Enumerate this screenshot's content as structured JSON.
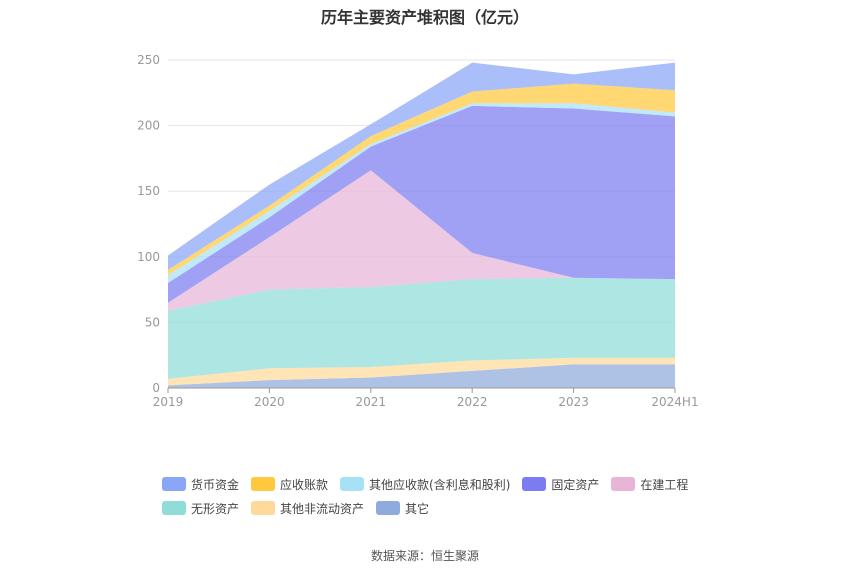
{
  "title": "历年主要资产堆积图（亿元）",
  "source": "数据来源：恒生聚源",
  "chart_data": {
    "type": "area",
    "stacked": true,
    "categories": [
      "2019",
      "2020",
      "2021",
      "2022",
      "2023",
      "2024H1"
    ],
    "ylim": [
      0,
      250
    ],
    "yticks": [
      0,
      50,
      100,
      150,
      200,
      250
    ],
    "grid": true,
    "legend_position": "bottom",
    "series": [
      {
        "name": "其它",
        "color": "#8faadc",
        "values": [
          2,
          6,
          8,
          13,
          18,
          18
        ]
      },
      {
        "name": "其他非流动资产",
        "color": "#ffd99a",
        "values": [
          5,
          9,
          8,
          8,
          5,
          5
        ]
      },
      {
        "name": "无形资产",
        "color": "#8fdcd8",
        "values": [
          52,
          60,
          61,
          62,
          61,
          60
        ]
      },
      {
        "name": "在建工程",
        "color": "#e8b4d8",
        "values": [
          6,
          40,
          89,
          20,
          0,
          0
        ]
      },
      {
        "name": "固定资产",
        "color": "#7b7cf0",
        "values": [
          15,
          15,
          18,
          112,
          129,
          124
        ]
      },
      {
        "name": "其他应收款(含利息和股利)",
        "color": "#a8e0f7",
        "values": [
          6,
          5,
          2,
          2,
          4,
          3
        ]
      },
      {
        "name": "应收账款",
        "color": "#ffc83d",
        "values": [
          4,
          4,
          6,
          9,
          15,
          17
        ]
      },
      {
        "name": "货币资金",
        "color": "#89a6f7",
        "values": [
          11,
          16,
          9,
          22,
          7,
          21
        ]
      }
    ]
  },
  "legend": {
    "row1": [
      "货币资金",
      "应收账款",
      "其他应收款(含利息和股利)",
      "固定资产",
      "在建工程"
    ],
    "row2": [
      "无形资产",
      "其他非流动资产",
      "其它"
    ]
  }
}
